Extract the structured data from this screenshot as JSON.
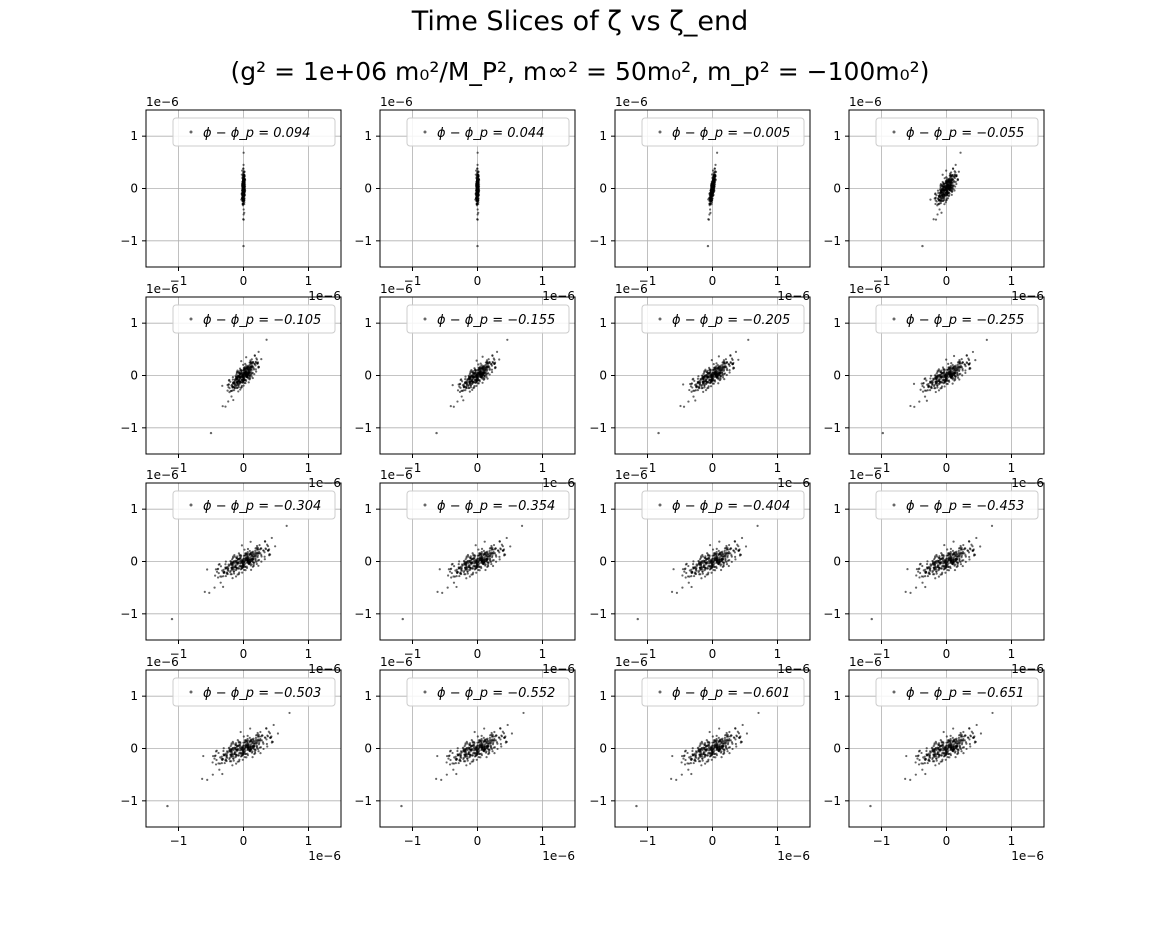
{
  "figure": {
    "title_line1": "Time Slices of ζ vs ζ_end",
    "title_line2": "(g² = 1e+06 m₀²/M_P², m∞² = 50m₀², m_p² = −100m₀²)"
  },
  "colors": {
    "points": "#000000",
    "grid": "#b0b0b0",
    "axes": "#000000",
    "legend_border": "#cccccc"
  },
  "chart_data": {
    "type": "scatter",
    "layout": "4x4 grid of subplots",
    "xlim": [
      -1.5e-06,
      1.5e-06
    ],
    "ylim": [
      -1.5e-06,
      1.5e-06
    ],
    "x_ticks": [
      -1,
      0,
      1
    ],
    "y_ticks": [
      -1,
      0,
      1
    ],
    "tick_labels": [
      "−1",
      "0",
      "1"
    ],
    "offset_label": "1e−6",
    "grid": true,
    "legend_placement": "upper right",
    "legend_prefix": "ϕ − ϕ_p = ",
    "marker": "small dots, alpha ~0.6",
    "panels": [
      {
        "label": "0.094",
        "spread_x": 0.02,
        "slope": 0.0,
        "outlier": [
          0.0,
          -1.1
        ]
      },
      {
        "label": "0.044",
        "spread_x": 0.02,
        "slope": 0.0,
        "outlier": [
          0.0,
          -1.1
        ]
      },
      {
        "label": "−0.005",
        "spread_x": 0.03,
        "slope": 0.1,
        "outlier": [
          -0.07,
          -1.1
        ]
      },
      {
        "label": "−0.055",
        "spread_x": 0.12,
        "slope": 0.3,
        "outlier": [
          -0.37,
          -1.1
        ]
      },
      {
        "label": "−0.105",
        "spread_x": 0.15,
        "slope": 0.5,
        "outlier": [
          -0.5,
          -1.1
        ]
      },
      {
        "label": "−0.155",
        "spread_x": 0.17,
        "slope": 0.65,
        "outlier": [
          -0.63,
          -1.1
        ]
      },
      {
        "label": "−0.205",
        "spread_x": 0.2,
        "slope": 0.78,
        "outlier": [
          -0.83,
          -1.1
        ]
      },
      {
        "label": "−0.255",
        "spread_x": 0.22,
        "slope": 0.88,
        "outlier": [
          -0.98,
          -1.1
        ]
      },
      {
        "label": "−0.304",
        "spread_x": 0.25,
        "slope": 0.94,
        "outlier": [
          -1.1,
          -1.1
        ]
      },
      {
        "label": "−0.354",
        "spread_x": 0.26,
        "slope": 0.97,
        "outlier": [
          -1.15,
          -1.1
        ]
      },
      {
        "label": "−0.404",
        "spread_x": 0.27,
        "slope": 0.98,
        "outlier": [
          -1.15,
          -1.1
        ]
      },
      {
        "label": "−0.453",
        "spread_x": 0.27,
        "slope": 0.99,
        "outlier": [
          -1.15,
          -1.1
        ]
      },
      {
        "label": "−0.503",
        "spread_x": 0.28,
        "slope": 1.0,
        "outlier": [
          -1.17,
          -1.1
        ]
      },
      {
        "label": "−0.552",
        "spread_x": 0.28,
        "slope": 1.0,
        "outlier": [
          -1.17,
          -1.1
        ]
      },
      {
        "label": "−0.601",
        "spread_x": 0.28,
        "slope": 1.0,
        "outlier": [
          -1.17,
          -1.1
        ]
      },
      {
        "label": "−0.651",
        "spread_x": 0.28,
        "slope": 1.0,
        "outlier": [
          -1.17,
          -1.1
        ]
      }
    ]
  }
}
